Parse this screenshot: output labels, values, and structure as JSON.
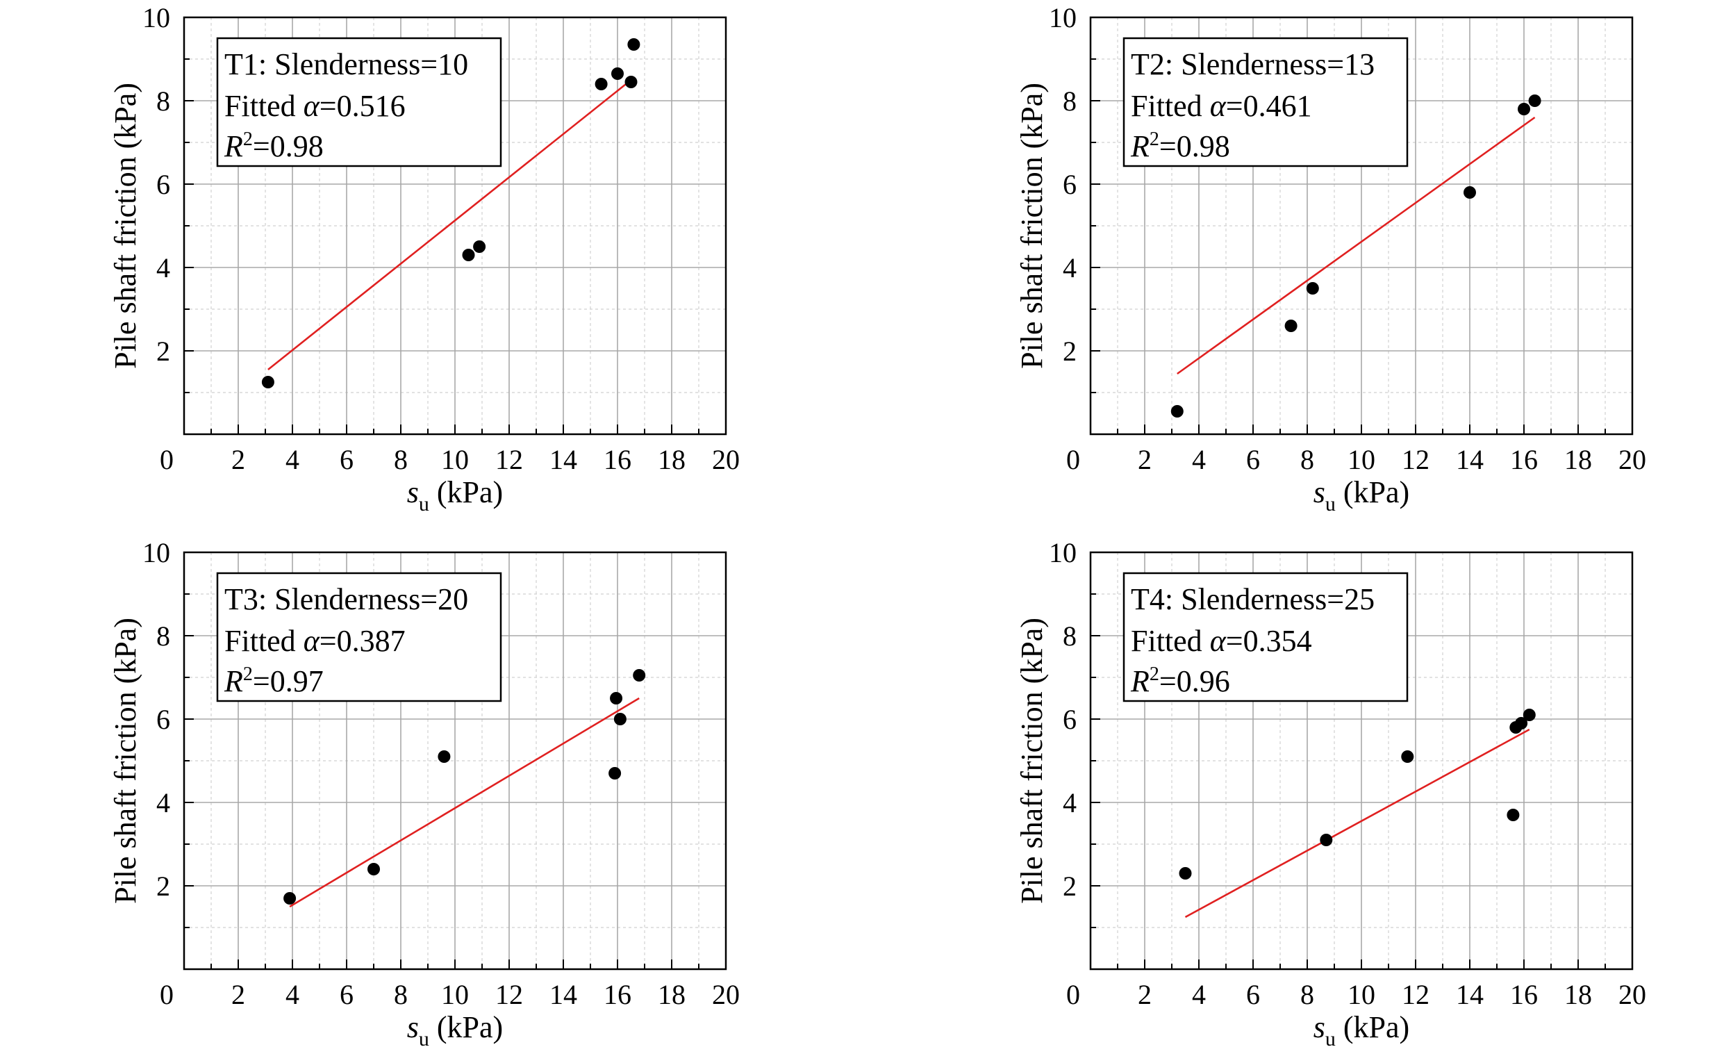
{
  "chart_data": [
    {
      "type": "scatter",
      "annotation": {
        "line1": "T1: Slenderness=10",
        "fitted_prefix": "Fitted ",
        "alpha_symbol": "α",
        "alpha_value": "=0.516",
        "r_symbol": "R",
        "r_exp": "2",
        "r_value": "=0.98"
      },
      "xlabel": {
        "symbol": "s",
        "subscript": "u",
        "unit": " (kPa)"
      },
      "ylabel": "Pile shaft friction (kPa)",
      "xlim": [
        0,
        20
      ],
      "ylim": [
        0,
        10
      ],
      "xticks": [
        0,
        2,
        4,
        6,
        8,
        10,
        12,
        14,
        16,
        18,
        20
      ],
      "yticks": [
        2,
        4,
        6,
        8,
        10
      ],
      "top_label": "10",
      "grid": true,
      "points": [
        [
          3.1,
          1.25
        ],
        [
          10.5,
          4.3
        ],
        [
          10.9,
          4.5
        ],
        [
          15.4,
          8.4
        ],
        [
          16.0,
          8.65
        ],
        [
          16.5,
          8.45
        ],
        [
          16.6,
          9.35
        ]
      ],
      "fit": {
        "alpha": 0.516,
        "x_range": [
          3.1,
          16.6
        ],
        "y_range": [
          1.55,
          8.55
        ],
        "color": "#e02020"
      }
    },
    {
      "type": "scatter",
      "annotation": {
        "line1": "T2: Slenderness=13",
        "fitted_prefix": "Fitted ",
        "alpha_symbol": "α",
        "alpha_value": "=0.461",
        "r_symbol": "R",
        "r_exp": "2",
        "r_value": "=0.98"
      },
      "xlabel": {
        "symbol": "s",
        "subscript": "u",
        "unit": " (kPa)"
      },
      "ylabel": "Pile shaft friction (kPa)",
      "xlim": [
        0,
        20
      ],
      "ylim": [
        0,
        10
      ],
      "xticks": [
        0,
        2,
        4,
        6,
        8,
        10,
        12,
        14,
        16,
        18,
        20
      ],
      "yticks": [
        2,
        4,
        6,
        8,
        10
      ],
      "top_label": "10",
      "grid": true,
      "points": [
        [
          3.2,
          0.55
        ],
        [
          7.4,
          2.6
        ],
        [
          8.2,
          3.5
        ],
        [
          14.0,
          5.8
        ],
        [
          16.0,
          7.8
        ],
        [
          16.4,
          8.0
        ]
      ],
      "fit": {
        "alpha": 0.461,
        "x_range": [
          3.2,
          16.4
        ],
        "y_range": [
          1.45,
          7.6
        ],
        "color": "#e02020"
      }
    },
    {
      "type": "scatter",
      "annotation": {
        "line1": "T3: Slenderness=20",
        "fitted_prefix": "Fitted ",
        "alpha_symbol": "α",
        "alpha_value": "=0.387",
        "r_symbol": "R",
        "r_exp": "2",
        "r_value": "=0.97"
      },
      "xlabel": {
        "symbol": "s",
        "subscript": "u",
        "unit": " (kPa)"
      },
      "ylabel": "Pile shaft friction (kPa)",
      "xlim": [
        0,
        20
      ],
      "ylim": [
        0,
        10
      ],
      "xticks": [
        0,
        2,
        4,
        6,
        8,
        10,
        12,
        14,
        16,
        18,
        20
      ],
      "yticks": [
        2,
        4,
        6,
        8,
        10
      ],
      "top_label": "10",
      "grid": true,
      "points": [
        [
          3.9,
          1.7
        ],
        [
          7.0,
          2.4
        ],
        [
          9.6,
          5.1
        ],
        [
          15.9,
          4.7
        ],
        [
          15.95,
          6.5
        ],
        [
          16.1,
          6.0
        ],
        [
          16.8,
          7.05
        ]
      ],
      "fit": {
        "alpha": 0.387,
        "x_range": [
          3.9,
          16.8
        ],
        "y_range": [
          1.5,
          6.5
        ],
        "color": "#e02020"
      }
    },
    {
      "type": "scatter",
      "annotation": {
        "line1": "T4: Slenderness=25",
        "fitted_prefix": "Fitted ",
        "alpha_symbol": "α",
        "alpha_value": "=0.354",
        "r_symbol": "R",
        "r_exp": "2",
        "r_value": "=0.96"
      },
      "xlabel": {
        "symbol": "s",
        "subscript": "u",
        "unit": " (kPa)"
      },
      "ylabel": "Pile shaft friction (kPa)",
      "xlim": [
        0,
        20
      ],
      "ylim": [
        0,
        10
      ],
      "xticks": [
        0,
        2,
        4,
        6,
        8,
        10,
        12,
        14,
        16,
        18,
        20
      ],
      "yticks": [
        2,
        4,
        6,
        8,
        10
      ],
      "top_label": "10",
      "grid": true,
      "points": [
        [
          3.5,
          2.3
        ],
        [
          8.7,
          3.1
        ],
        [
          11.7,
          5.1
        ],
        [
          15.6,
          3.7
        ],
        [
          15.7,
          5.8
        ],
        [
          15.9,
          5.9
        ],
        [
          16.2,
          6.1
        ]
      ],
      "fit": {
        "alpha": 0.354,
        "x_range": [
          3.5,
          16.2
        ],
        "y_range": [
          1.25,
          5.75
        ],
        "color": "#e02020"
      }
    }
  ],
  "colors": {
    "fit_line": "#e02020",
    "points": "#000000",
    "major_grid": "#a8a8a8",
    "minor_grid": "#d0d0d0"
  }
}
